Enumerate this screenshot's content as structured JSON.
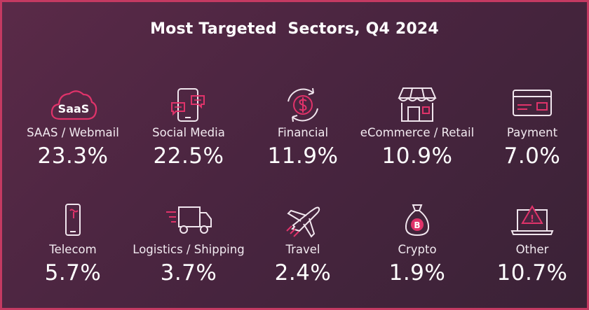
{
  "title": "Most Targeted  Sectors, Q4 2024",
  "colors": {
    "accent": "#e0336a",
    "line": "#f1e6ee",
    "background": "#4a2540",
    "border": "#c43a62"
  },
  "chart_data": {
    "type": "table",
    "title": "Most Targeted  Sectors, Q4 2024",
    "sectors": [
      {
        "name": "SAAS / Webmail",
        "value_label": "23.3%",
        "value": 23.3,
        "icon": "saas-cloud-icon",
        "icon_text": "SaaS"
      },
      {
        "name": "Social Media",
        "value_label": "22.5%",
        "value": 22.5,
        "icon": "social-media-phone-icon"
      },
      {
        "name": "Financial",
        "value_label": "11.9%",
        "value": 11.9,
        "icon": "financial-dollar-icon"
      },
      {
        "name": "eCommerce / Retail",
        "value_label": "10.9%",
        "value": 10.9,
        "icon": "storefront-icon"
      },
      {
        "name": "Payment",
        "value_label": "7.0%",
        "value": 7.0,
        "icon": "payment-card-icon"
      },
      {
        "name": "Telecom",
        "value_label": "5.7%",
        "value": 5.7,
        "icon": "telecom-phone-icon"
      },
      {
        "name": "Logistics / Shipping",
        "value_label": "3.7%",
        "value": 3.7,
        "icon": "delivery-truck-icon"
      },
      {
        "name": "Travel",
        "value_label": "2.4%",
        "value": 2.4,
        "icon": "airplane-icon"
      },
      {
        "name": "Crypto",
        "value_label": "1.9%",
        "value": 1.9,
        "icon": "bitcoin-bag-icon",
        "icon_text": "B"
      },
      {
        "name": "Other",
        "value_label": "10.7%",
        "value": 10.7,
        "icon": "laptop-warning-icon",
        "icon_text": "!"
      }
    ]
  }
}
